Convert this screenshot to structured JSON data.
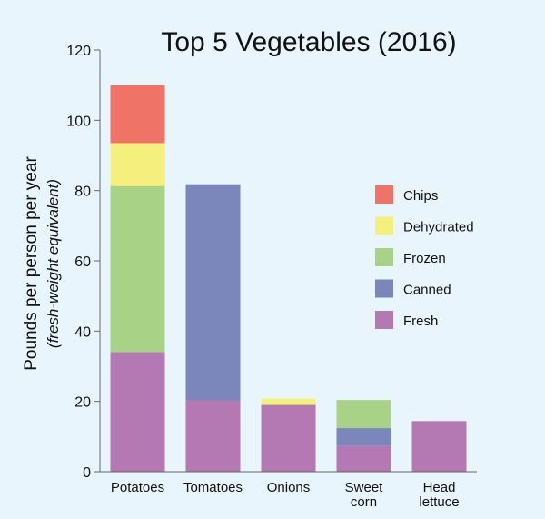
{
  "chart_data": {
    "type": "bar",
    "stacked": true,
    "title": "Top 5 Vegetables (2016)",
    "ylabel": "Pounds per person per year",
    "ylabel_sub": "(fresh-weight equivalent)",
    "ylim": [
      0,
      120
    ],
    "yticks": [
      0,
      20,
      40,
      60,
      80,
      100,
      120
    ],
    "grid": false,
    "legend_position": "right",
    "categories": [
      [
        "Potatoes"
      ],
      [
        "Tomatoes"
      ],
      [
        "Onions"
      ],
      [
        "Sweet",
        "corn"
      ],
      [
        "Head",
        "lettuce"
      ]
    ],
    "series": [
      {
        "name": "Fresh",
        "color": "#b478b2",
        "values": [
          34,
          20.3,
          19,
          7.4,
          14.4
        ]
      },
      {
        "name": "Canned",
        "color": "#7b87ba",
        "values": [
          0,
          61.5,
          0,
          5.0,
          0
        ]
      },
      {
        "name": "Frozen",
        "color": "#a8d386",
        "values": [
          47.3,
          0,
          0,
          8.0,
          0
        ]
      },
      {
        "name": "Dehydrated",
        "color": "#f5ef7e",
        "values": [
          12.2,
          0,
          1.8,
          0,
          0
        ]
      },
      {
        "name": "Chips",
        "color": "#ef7467",
        "values": [
          16.5,
          0,
          0,
          0,
          0
        ]
      }
    ],
    "legend_order": [
      "Chips",
      "Dehydrated",
      "Frozen",
      "Canned",
      "Fresh"
    ]
  }
}
